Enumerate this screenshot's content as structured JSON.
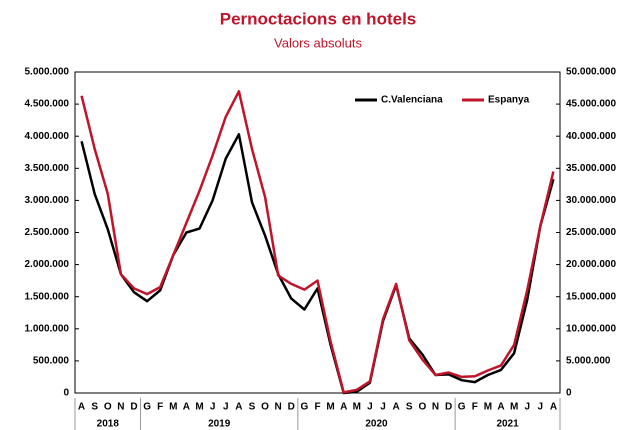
{
  "chart_data": {
    "type": "line",
    "title": "Pernoctacions en hotels",
    "subtitle": "Valors absoluts",
    "categories": [
      "A",
      "S",
      "O",
      "N",
      "D",
      "G",
      "F",
      "M",
      "A",
      "M",
      "J",
      "J",
      "A",
      "S",
      "O",
      "N",
      "D",
      "G",
      "F",
      "M",
      "A",
      "M",
      "J",
      "J",
      "A",
      "S",
      "O",
      "N",
      "D",
      "G",
      "F",
      "M",
      "A",
      "M",
      "J",
      "J",
      "A"
    ],
    "x_groups": [
      {
        "label": "2018",
        "count": 5
      },
      {
        "label": "2019",
        "count": 12
      },
      {
        "label": "2020",
        "count": 12
      },
      {
        "label": "2021",
        "count": 8
      }
    ],
    "series": [
      {
        "name": "C.Valenciana",
        "color": "#000000",
        "axis": "y",
        "values": [
          3920000,
          3100000,
          2550000,
          1850000,
          1570000,
          1430000,
          1600000,
          2150000,
          2500000,
          2560000,
          3000000,
          3650000,
          4030000,
          2970000,
          2450000,
          1850000,
          1470000,
          1300000,
          1630000,
          750000,
          0,
          20000,
          160000,
          1120000,
          1680000,
          850000,
          600000,
          280000,
          290000,
          200000,
          170000,
          280000,
          360000,
          620000,
          1450000,
          2600000,
          3330000
        ]
      },
      {
        "name": "Espanya",
        "color": "#c0142b",
        "axis": "y2",
        "values": [
          46300000,
          38000000,
          31000000,
          18500000,
          16300000,
          15400000,
          16500000,
          21500000,
          26500000,
          31500000,
          37000000,
          43000000,
          47000000,
          38000000,
          30500000,
          18300000,
          17000000,
          16100000,
          17500000,
          8000000,
          100000,
          500000,
          1800000,
          11500000,
          17000000,
          8200000,
          5200000,
          2800000,
          3200000,
          2500000,
          2600000,
          3500000,
          4300000,
          7500000,
          16000000,
          26000000,
          34500000
        ]
      }
    ],
    "ylim": [
      0,
      5000000
    ],
    "yticks": [
      0,
      {
        "value": 500000,
        "label": "500.000"
      },
      {
        "value": 1000000,
        "label": "1.000.000"
      },
      {
        "value": 1500000,
        "label": "1.500.000"
      },
      {
        "value": 2000000,
        "label": "2.000.000"
      },
      {
        "value": 2500000,
        "label": "2.500.000"
      },
      {
        "value": 3000000,
        "label": "3.000.000"
      },
      {
        "value": 3500000,
        "label": "3.500.000"
      },
      {
        "value": 4000000,
        "label": "4.000.000"
      },
      {
        "value": 4500000,
        "label": "4.500.000"
      },
      {
        "value": 5000000,
        "label": "5.000.000"
      }
    ],
    "y2lim": [
      0,
      50000000
    ],
    "y2ticks": [
      0,
      {
        "value": 5000000,
        "label": "5.000.000"
      },
      {
        "value": 10000000,
        "label": "10.000.000"
      },
      {
        "value": 15000000,
        "label": "15.000.000"
      },
      {
        "value": 20000000,
        "label": "20.000.000"
      },
      {
        "value": 25000000,
        "label": "25.000.000"
      },
      {
        "value": 30000000,
        "label": "30.000.000"
      },
      {
        "value": 35000000,
        "label": "35.000.000"
      },
      {
        "value": 40000000,
        "label": "40.000.000"
      },
      {
        "value": 45000000,
        "label": "45.000.000"
      },
      {
        "value": 50000000,
        "label": "50.000.000"
      }
    ],
    "legend": "top-right",
    "grid": false
  }
}
